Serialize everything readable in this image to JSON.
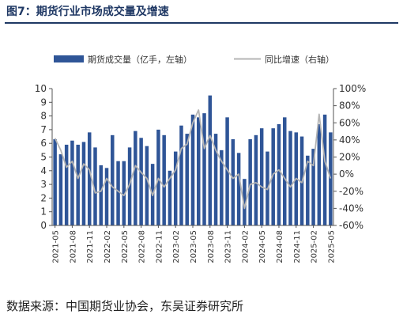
{
  "header": {
    "title": "图7：期货行业市场成交量及增速"
  },
  "footer": {
    "source": "数据来源：中国期货业协会，东吴证券研究所"
  },
  "colors": {
    "bar": "#2f5597",
    "line": "#b4b4b4",
    "title": "#1f3864"
  },
  "chart_data": {
    "type": "bar",
    "title": "",
    "legend_position": "top",
    "grid": false,
    "xlabel": "",
    "ylabel_left": "",
    "ylabel_right": "",
    "ylim_left": [
      0,
      10
    ],
    "ylim_right": [
      -60,
      100
    ],
    "left_ticks": [
      "0",
      "1",
      "2",
      "3",
      "4",
      "5",
      "6",
      "7",
      "8",
      "9",
      "10"
    ],
    "right_ticks": [
      "-60%",
      "-40%",
      "-20%",
      "0%",
      "20%",
      "40%",
      "60%",
      "80%",
      "100%"
    ],
    "x_tick_labels": [
      "2021-05",
      "2021-08",
      "2021-11",
      "2022-02",
      "2022-05",
      "2022-08",
      "2022-11",
      "2023-02",
      "2023-05",
      "2023-08",
      "2023-11",
      "2024-02",
      "2024-05",
      "2024-08",
      "2024-11",
      "2025-02",
      "2025-05"
    ],
    "series": [
      {
        "name": "期货成交量（亿手，左轴）",
        "axis": "left",
        "kind": "bar",
        "values": [
          6.3,
          5.2,
          5.9,
          6.2,
          5.9,
          6.1,
          6.8,
          5.7,
          4.4,
          4.2,
          6.6,
          4.7,
          4.7,
          5.7,
          6.9,
          6.4,
          5.8,
          4.5,
          7.0,
          6.6,
          4.0,
          5.4,
          7.3,
          6.7,
          8.1,
          7.9,
          8.2,
          9.5,
          6.7,
          5.5,
          7.9,
          6.3,
          5.3,
          3.4,
          6.3,
          6.6,
          7.1,
          5.4,
          7.1,
          7.4,
          7.9,
          6.9,
          6.8,
          6.5,
          5.1,
          5.6,
          7.4,
          8.1,
          6.8
        ]
      },
      {
        "name": "同比增速（右轴）",
        "axis": "right",
        "kind": "line",
        "values": [
          42,
          28,
          8,
          15,
          -5,
          12,
          5,
          -22,
          -20,
          -5,
          -15,
          -20,
          -25,
          -12,
          10,
          2,
          -5,
          -25,
          -5,
          -15,
          -5,
          5,
          30,
          35,
          60,
          75,
          30,
          45,
          28,
          15,
          5,
          -5,
          0,
          -40,
          -12,
          -10,
          -15,
          -18,
          0,
          5,
          -5,
          -15,
          -5,
          -10,
          15,
          10,
          70,
          15,
          -5
        ]
      }
    ]
  }
}
